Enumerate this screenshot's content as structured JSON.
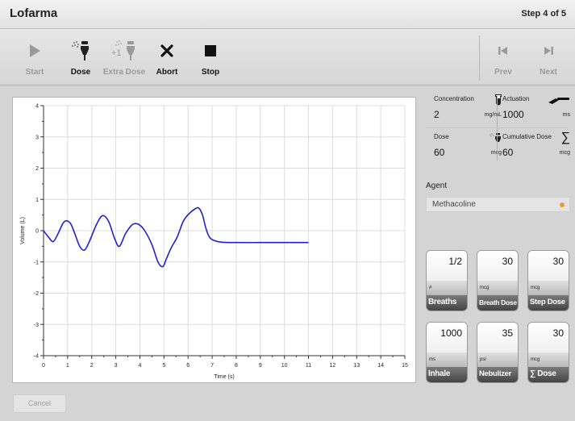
{
  "window": {
    "title": "Lofarma",
    "step": "Step 4 of 5"
  },
  "toolbar": {
    "start": "Start",
    "dose": "Dose",
    "extra_dose": "Extra Dose",
    "abort": "Abort",
    "stop": "Stop",
    "prev": "Prev",
    "next": "Next",
    "extra_dose_badge": "+1"
  },
  "info": {
    "concentration": {
      "label": "Concentration",
      "value": "2",
      "unit": "mg/mL",
      "icon": "vial-icon"
    },
    "actuation": {
      "label": "Actuation",
      "value": "1000",
      "unit": "ms",
      "icon": "inhaler-icon"
    },
    "dose": {
      "label": "Dose",
      "value": "60",
      "unit": "mcg",
      "icon": "nebulizer-icon"
    },
    "cumulative_dose": {
      "label": "Cumulative Dose",
      "value": "60",
      "unit": "mcg",
      "icon": "sigma-icon",
      "symbol": "∑"
    }
  },
  "agent": {
    "label": "Agent",
    "value": "Methacoline",
    "indicator_color": "#e89a3c"
  },
  "tiles": [
    {
      "value": "1/2",
      "unit": "#",
      "name": "Breaths"
    },
    {
      "value": "30",
      "unit": "mcg",
      "name": "Breath Dose"
    },
    {
      "value": "30",
      "unit": "mcg",
      "name": "Step Dose"
    },
    {
      "value": "1000",
      "unit": "ms",
      "name": "Inhale"
    },
    {
      "value": "35",
      "unit": "psi",
      "name": "Nebulizer"
    },
    {
      "value": "30",
      "unit": "mcg",
      "name": "∑ Dose"
    }
  ],
  "footer": {
    "cancel": "Cancel"
  },
  "chart_data": {
    "type": "line",
    "xlabel": "Time (s)",
    "ylabel": "Volume (L)",
    "xlim": [
      0,
      15
    ],
    "ylim": [
      -4,
      4
    ],
    "xticks": [
      "0",
      "1",
      "2",
      "3",
      "4",
      "5",
      "6",
      "7",
      "8",
      "9",
      "10",
      "11",
      "12",
      "13",
      "14",
      "15"
    ],
    "yticks": [
      "-4",
      "-3",
      "-2",
      "-1",
      "0",
      "1",
      "2",
      "3",
      "4"
    ],
    "grid": true,
    "line_color": "#1f1fd6",
    "series": [
      {
        "x": [
          0,
          0.2,
          0.4,
          0.6,
          0.85,
          1.1,
          1.3,
          1.5,
          1.7,
          1.9,
          2.2,
          2.45,
          2.7,
          2.95,
          3.15,
          3.4,
          3.7,
          3.95,
          4.2,
          4.5,
          4.75,
          4.95,
          5.1,
          5.3,
          5.55,
          5.8,
          6.05,
          6.3,
          6.45,
          6.6,
          6.75,
          6.9,
          7.1,
          7.4,
          8,
          9,
          10,
          11
        ],
        "y": [
          0,
          -0.2,
          -0.35,
          -0.1,
          0.28,
          0.25,
          -0.1,
          -0.5,
          -0.62,
          -0.35,
          0.2,
          0.48,
          0.3,
          -0.25,
          -0.5,
          -0.1,
          0.2,
          0.2,
          0,
          -0.45,
          -1.0,
          -1.15,
          -0.9,
          -0.55,
          -0.2,
          0.3,
          0.55,
          0.7,
          0.72,
          0.5,
          0.05,
          -0.22,
          -0.32,
          -0.37,
          -0.38,
          -0.38,
          -0.38,
          -0.38
        ]
      }
    ]
  }
}
